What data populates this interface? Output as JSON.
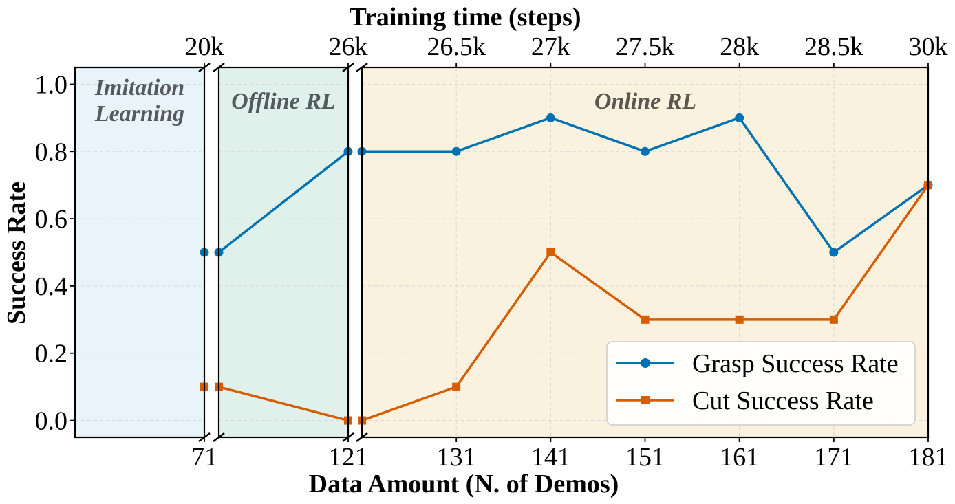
{
  "chart_data": {
    "type": "line",
    "xlabel": "Data Amount (N. of Demos)",
    "x2label": "Training time (steps)",
    "ylabel": "Success Rate",
    "ylim": [
      -0.05,
      1.05
    ],
    "y_ticks": [
      "0.0",
      "0.2",
      "0.4",
      "0.6",
      "0.8",
      "1.0"
    ],
    "y_tick_values": [
      0.0,
      0.2,
      0.4,
      0.6,
      0.8,
      1.0
    ],
    "grid": true,
    "legend_position": "bottom-right",
    "x_tick_labels": [
      "71",
      "121",
      "131",
      "141",
      "151",
      "161",
      "171",
      "181"
    ],
    "x2_tick_labels": [
      "20k",
      "26k",
      "26.5k",
      "27k",
      "27.5k",
      "28k",
      "28.5k",
      "30k"
    ],
    "regions": [
      {
        "name": "Imitation Learning",
        "label_lines": [
          "Imitation",
          "Learning"
        ],
        "color": "#e8f4fa",
        "text_color": "#555a60"
      },
      {
        "name": "Offline RL",
        "label_lines": [
          "Offline RL"
        ],
        "color": "#dff1ea",
        "text_color": "#555a60"
      },
      {
        "name": "Online RL",
        "label_lines": [
          "Online RL"
        ],
        "color": "#faf1de",
        "text_color": "#5a5650"
      }
    ],
    "series": [
      {
        "name": "Grasp Success Rate",
        "color": "#0072b2",
        "marker": "circle",
        "offline_x": [
          71,
          121
        ],
        "offline_values": [
          0.5,
          0.8
        ],
        "online_x": [
          121,
          131,
          141,
          151,
          161,
          171,
          181
        ],
        "online_values": [
          0.8,
          0.8,
          0.9,
          0.8,
          0.9,
          0.5,
          0.7
        ]
      },
      {
        "name": "Cut Success Rate",
        "color": "#d55e00",
        "marker": "square",
        "offline_x": [
          71,
          121
        ],
        "offline_values": [
          0.1,
          0.0
        ],
        "online_x": [
          121,
          131,
          141,
          151,
          161,
          171,
          181
        ],
        "online_values": [
          0.0,
          0.1,
          0.5,
          0.3,
          0.3,
          0.3,
          0.7
        ]
      }
    ]
  }
}
